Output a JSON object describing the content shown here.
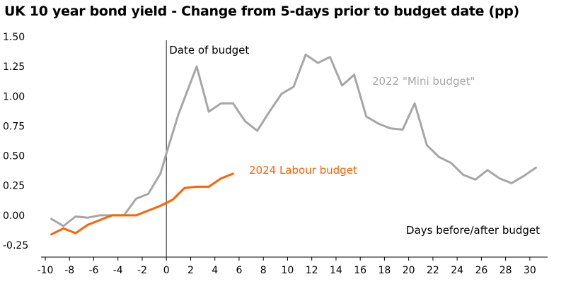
{
  "chart_data": {
    "type": "line",
    "title": "UK 10 year bond yield - Change from 5-days prior to budget date (pp)",
    "xlabel": "Days before/after budget",
    "ylabel": "",
    "xlim": [
      -10,
      31
    ],
    "ylim": [
      -0.25,
      1.5
    ],
    "x_ticks": [
      -10,
      -8,
      -6,
      -4,
      -2,
      0,
      2,
      4,
      6,
      8,
      10,
      12,
      14,
      16,
      18,
      20,
      22,
      24,
      26,
      28,
      30
    ],
    "y_ticks": [
      -0.25,
      0,
      0.25,
      0.5,
      0.75,
      1.0,
      1.25,
      1.5
    ],
    "y_tick_labels": [
      "-0.25",
      "0.00",
      "0.25",
      "0.50",
      "0.75",
      "1.00",
      "1.25",
      "1.50"
    ],
    "reference_line": {
      "x": 0,
      "label": "Date of budget"
    },
    "series": [
      {
        "name": "2022 \"Mini budget\"",
        "color": "#a6a6a6",
        "x": [
          -9.5,
          -8.5,
          -7.5,
          -6.5,
          -5.5,
          -4.5,
          -3.5,
          -2.5,
          -1.5,
          -0.5,
          0,
          1,
          2.5,
          3.5,
          4.5,
          5.5,
          6.5,
          7.5,
          8.5,
          9.5,
          10.5,
          11.5,
          12.5,
          13.5,
          14.5,
          15.5,
          16.5,
          17.5,
          18.5,
          19.5,
          20.5,
          21.5,
          22.5,
          23.5,
          24.5,
          25.5,
          26.5,
          27.5,
          28.5,
          29.5,
          30.5
        ],
        "values": [
          -0.03,
          -0.09,
          -0.01,
          -0.02,
          0.0,
          0.0,
          0.0,
          0.14,
          0.18,
          0.35,
          0.52,
          0.85,
          1.25,
          0.87,
          0.94,
          0.94,
          0.79,
          0.71,
          0.87,
          1.02,
          1.08,
          1.35,
          1.28,
          1.33,
          1.09,
          1.18,
          0.83,
          0.77,
          0.73,
          0.72,
          0.94,
          0.59,
          0.49,
          0.44,
          0.34,
          0.3,
          0.38,
          0.31,
          0.27,
          0.33,
          0.4
        ]
      },
      {
        "name": "2024 Labour budget",
        "color": "#ff6200",
        "x": [
          -9.5,
          -8.5,
          -7.5,
          -6.5,
          -5.5,
          -4.5,
          -3.5,
          -2.5,
          -1.5,
          -0.5,
          0.5,
          1.5,
          2.5,
          3.5,
          4.5,
          5.5
        ],
        "values": [
          -0.16,
          -0.11,
          -0.15,
          -0.08,
          -0.04,
          0.0,
          0.0,
          0.0,
          0.04,
          0.08,
          0.13,
          0.23,
          0.24,
          0.24,
          0.31,
          0.35
        ]
      }
    ]
  }
}
